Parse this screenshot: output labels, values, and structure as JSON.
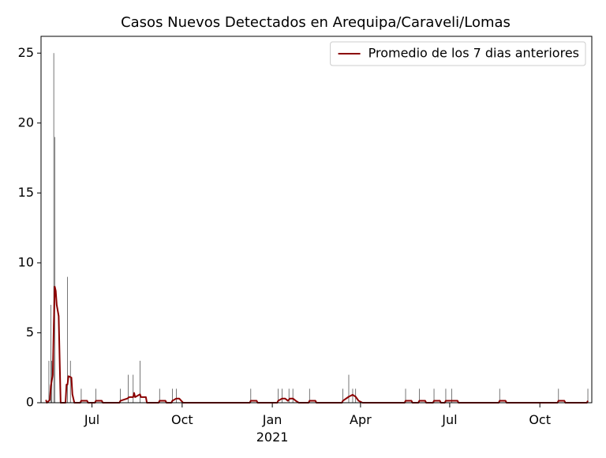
{
  "chart_data": {
    "type": "bar",
    "title": "Casos Nuevos Detectados en Arequipa/Caraveli/Lomas",
    "xlim": [
      18392,
      18954
    ],
    "xticks": [
      {
        "value": 18444,
        "label": "Jul"
      },
      {
        "value": 18536,
        "label": "Oct"
      },
      {
        "value": 18628,
        "label": "Jan\n2021"
      },
      {
        "value": 18718,
        "label": "Apr"
      },
      {
        "value": 18809,
        "label": "Jul"
      },
      {
        "value": 18901,
        "label": "Oct"
      }
    ],
    "ylim": [
      0,
      26.2
    ],
    "yticks": [
      0,
      5,
      10,
      15,
      20,
      25
    ],
    "legend": "upper right",
    "series": [
      {
        "type": "bar",
        "color": "#555555",
        "x": [
          18400,
          18402,
          18403,
          18405,
          18406,
          18419,
          18422,
          18433,
          18448,
          18473,
          18481,
          18486,
          18493,
          18513,
          18526,
          18530,
          18606,
          18634,
          18638,
          18645,
          18649,
          18666,
          18700,
          18706,
          18710,
          18713,
          18764,
          18778,
          18793,
          18805,
          18811,
          18860,
          18920,
          18950
        ],
        "values": [
          3,
          7,
          3,
          25,
          19,
          9,
          3,
          1,
          1,
          1,
          2,
          2,
          3,
          1,
          1,
          1,
          1,
          1,
          1,
          1,
          1,
          1,
          1,
          2,
          1,
          1,
          1,
          1,
          1,
          1,
          1,
          1,
          1,
          1
        ]
      },
      {
        "type": "line",
        "name": "Promedio de los 7 dias anteriores",
        "color": "#8b0000",
        "x": [
          18397,
          18398,
          18401,
          18402,
          18404,
          18405,
          18406,
          18407,
          18408,
          18410,
          18412,
          18417,
          18418,
          18419,
          18420,
          18423,
          18424,
          18426,
          18432,
          18433,
          18439,
          18440,
          18447,
          18448,
          18454,
          18455,
          18472,
          18473,
          18480,
          18482,
          18486,
          18487,
          18488,
          18493,
          18494,
          18499,
          18500,
          18512,
          18513,
          18519,
          18520,
          18525,
          18526,
          18530,
          18533,
          18537,
          18605,
          18606,
          18612,
          18613,
          18633,
          18634,
          18638,
          18641,
          18644,
          18646,
          18649,
          18652,
          18655,
          18665,
          18666,
          18672,
          18673,
          18699,
          18700,
          18706,
          18710,
          18713,
          18716,
          18720,
          18763,
          18764,
          18770,
          18771,
          18777,
          18778,
          18784,
          18785,
          18792,
          18793,
          18799,
          18800,
          18804,
          18805,
          18817,
          18818,
          18859,
          18860,
          18866,
          18867,
          18919,
          18920,
          18926,
          18927,
          18949,
          18950
        ],
        "values": [
          0.2,
          0,
          0.2,
          1.2,
          2,
          5.5,
          8.3,
          8,
          7,
          6.2,
          0,
          0,
          1.3,
          1.3,
          1.9,
          1.8,
          0.6,
          0,
          0,
          0.14,
          0.14,
          0,
          0,
          0.14,
          0.14,
          0,
          0,
          0.14,
          0.3,
          0.4,
          0.4,
          0.7,
          0.4,
          0.6,
          0.4,
          0.4,
          0,
          0,
          0.14,
          0.14,
          0,
          0,
          0.14,
          0.3,
          0.3,
          0,
          0,
          0.14,
          0.14,
          0,
          0,
          0.14,
          0.3,
          0.3,
          0.14,
          0.3,
          0.3,
          0.14,
          0,
          0,
          0.14,
          0.14,
          0,
          0,
          0.14,
          0.43,
          0.57,
          0.43,
          0.14,
          0,
          0,
          0.14,
          0.14,
          0,
          0,
          0.14,
          0.14,
          0,
          0,
          0.14,
          0.14,
          0,
          0,
          0.14,
          0.14,
          0,
          0,
          0.14,
          0.14,
          0,
          0,
          0.14,
          0.14,
          0,
          0,
          0.14
        ]
      }
    ]
  }
}
